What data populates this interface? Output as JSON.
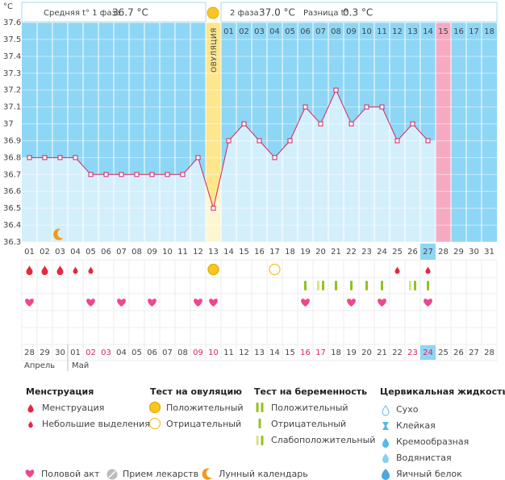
{
  "chart_data": {
    "type": "line",
    "y_unit": "°C",
    "ovulation_label": "ОВУЛЯЦИЯ",
    "categories": [
      "01",
      "02",
      "03",
      "04",
      "05",
      "06",
      "07",
      "08",
      "09",
      "10",
      "11",
      "12",
      "13",
      "14",
      "15",
      "16",
      "17",
      "18",
      "19",
      "20",
      "21",
      "22",
      "23",
      "24",
      "25",
      "26",
      "27",
      "28",
      "29",
      "30",
      "31"
    ],
    "values": [
      36.8,
      36.8,
      36.8,
      36.8,
      36.7,
      36.7,
      36.7,
      36.7,
      36.7,
      36.7,
      36.7,
      36.8,
      36.5,
      36.9,
      37.0,
      36.9,
      36.8,
      36.9,
      37.1,
      37.0,
      37.2,
      37.0,
      37.1,
      37.1,
      36.9,
      37.0,
      36.9,
      null,
      null,
      null,
      null
    ],
    "color": "#d6245c",
    "ylim": [
      36.3,
      37.6
    ],
    "yticks": [
      36.3,
      36.4,
      36.5,
      36.6,
      36.7,
      36.8,
      36.9,
      37,
      37.1,
      37.2,
      37.3,
      37.4,
      37.5,
      37.6
    ],
    "cycle_days": [
      "01",
      "02",
      "03",
      "04",
      "05",
      "06",
      "07",
      "08",
      "09",
      "10",
      "11",
      "12",
      "13",
      "14",
      "15",
      "16",
      "17",
      "18"
    ],
    "bottom_days": [
      "28",
      "29",
      "30",
      "01",
      "02",
      "03",
      "04",
      "05",
      "06",
      "07",
      "08",
      "09",
      "10",
      "11",
      "12",
      "13",
      "14",
      "15",
      "16",
      "17",
      "18",
      "19",
      "20",
      "21",
      "22",
      "23",
      "24",
      "25",
      "26",
      "27",
      "28"
    ],
    "months": [
      "Апрель",
      "Май"
    ]
  },
  "header": {
    "phase1_label": "Средняя t° 1 фаза",
    "phase1_value": "36.7 °C",
    "phase2_label": "2 фаза",
    "phase2_value": "37.0 °C",
    "diff_label": "Разница t°",
    "diff_value": "0.3 °C"
  },
  "legend": {
    "menstruation": {
      "title": "Менструация",
      "items": [
        "Менструация",
        "Небольшие выделения"
      ]
    },
    "ovulation_test": {
      "title": "Тест на овуляцию",
      "items": [
        "Положительный",
        "Отрицательный"
      ]
    },
    "pregnancy_test": {
      "title": "Тест на беременность",
      "items": [
        "Положительный",
        "Отрицательный",
        "Слабоположительный"
      ]
    },
    "cervical": {
      "title": "Цервикальная жидкость",
      "items": [
        "Сухо",
        "Клейкая",
        "Кремообразная",
        "Водянистая",
        "Яичный белок"
      ]
    },
    "extra": [
      "Половой акт",
      "Прием лекарств",
      "Лунный календарь"
    ]
  }
}
